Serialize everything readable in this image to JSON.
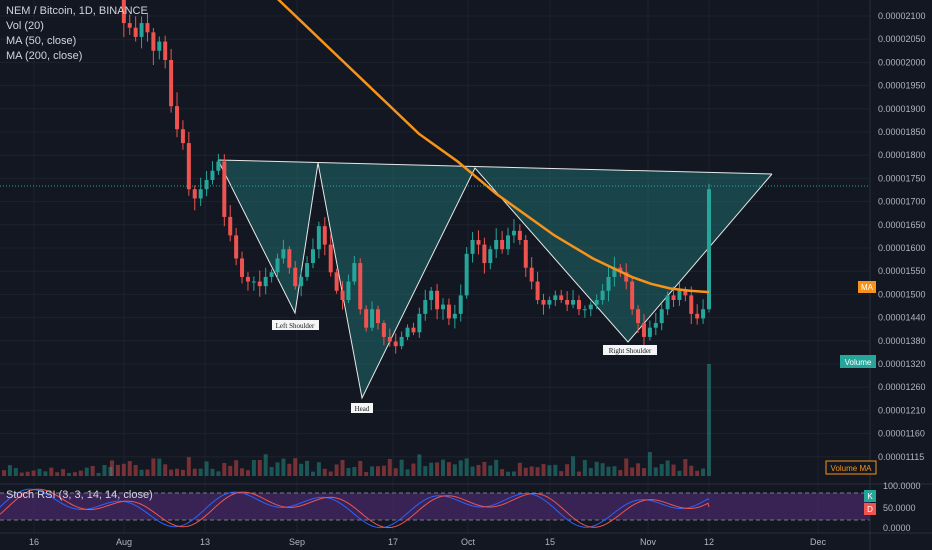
{
  "legend": {
    "title": "NEM / Bitcoin, 1D, BINANCE",
    "vol": "Vol (20)",
    "ma50": "MA (50, close)",
    "ma200": "MA (200, close)"
  },
  "stoch_legend": "Stoch RSI (3, 3, 14, 14, close)",
  "colors": {
    "background": "#131722",
    "up": "#26a69a",
    "down": "#ef5350",
    "ma": "#f7931a",
    "pattern_fill": "#1f6b6b",
    "pattern_line": "#e8e8e8",
    "stoch_band": "#4a2a6b",
    "stoch_k": "#2962ff",
    "stoch_d": "#ef5350",
    "axis_text": "#b2b5be",
    "badge_volume": "#26a69a",
    "badge_ma": "#f7931a",
    "last_price_line": "#26a69a"
  },
  "price_axis_labels": [
    "0.00002100",
    "0.00002050",
    "0.00002000",
    "0.00001950",
    "0.00001900",
    "0.00001850",
    "0.00001800",
    "0.00001750",
    "0.00001700",
    "0.00001650",
    "0.00001600",
    "0.00001550",
    "0.00001500",
    "0.00001440",
    "0.00001380",
    "0.00001320",
    "0.00001260",
    "0.00001210",
    "0.00001160",
    "0.00001115"
  ],
  "stoch_axis_labels": [
    "100.0000",
    "50.0000",
    "0.0000"
  ],
  "time_axis_labels": [
    "16",
    "Aug",
    "13",
    "Sep",
    "17",
    "Oct",
    "15",
    "Nov",
    "12",
    "Dec"
  ],
  "badges": {
    "ma": "MA",
    "volume": "Volume",
    "volume_ma": "Volume MA",
    "k": "K",
    "d": "D"
  },
  "annotations": {
    "left_shoulder": "Left Shoulder",
    "head": "Head",
    "right_shoulder": "Right Shoulder"
  },
  "chart_data": {
    "type": "candlestick",
    "title": "NEM / Bitcoin, 1D, BINANCE",
    "pattern": "inverse head and shoulders",
    "ylim": [
      1.09e-05,
      2.13e-05
    ],
    "last_price": 1.72e-05,
    "ma50_last": 1.497e-05,
    "candles_close": [
      2.2e-05,
      2.15e-05,
      2.08e-05,
      2.07e-05,
      2.05e-05,
      2.08e-05,
      2.06e-05,
      2.02e-05,
      2.04e-05,
      2e-05,
      1.9e-05,
      1.85e-05,
      1.82e-05,
      1.72e-05,
      1.7e-05,
      1.72e-05,
      1.74e-05,
      1.76e-05,
      1.78e-05,
      1.66e-05,
      1.62e-05,
      1.57e-05,
      1.53e-05,
      1.52e-05,
      1.52e-05,
      1.51e-05,
      1.53e-05,
      1.54e-05,
      1.57e-05,
      1.59e-05,
      1.55e-05,
      1.51e-05,
      1.53e-05,
      1.56e-05,
      1.59e-05,
      1.64e-05,
      1.6e-05,
      1.54e-05,
      1.5e-05,
      1.48e-05,
      1.52e-05,
      1.56e-05,
      1.46e-05,
      1.42e-05,
      1.46e-05,
      1.43e-05,
      1.4e-05,
      1.39e-05,
      1.38e-05,
      1.4e-05,
      1.42e-05,
      1.41e-05,
      1.45e-05,
      1.48e-05,
      1.5e-05,
      1.46e-05,
      1.47e-05,
      1.44e-05,
      1.45e-05,
      1.49e-05,
      1.58e-05,
      1.61e-05,
      1.6e-05,
      1.56e-05,
      1.59e-05,
      1.61e-05,
      1.59e-05,
      1.62e-05,
      1.63e-05,
      1.61e-05,
      1.55e-05,
      1.52e-05,
      1.48e-05,
      1.47e-05,
      1.48e-05,
      1.49e-05,
      1.48e-05,
      1.47e-05,
      1.48e-05,
      1.46e-05,
      1.46e-05,
      1.47e-05,
      1.48e-05,
      1.5e-05,
      1.53e-05,
      1.55e-05,
      1.54e-05,
      1.52e-05,
      1.46e-05,
      1.43e-05,
      1.4e-05,
      1.42e-05,
      1.43e-05,
      1.46e-05,
      1.49e-05,
      1.48e-05,
      1.5e-05,
      1.49e-05,
      1.45e-05,
      1.44e-05,
      1.46e-05,
      1.72e-05
    ],
    "ma50": [
      2.2e-05,
      2.16e-05,
      2.12e-05,
      2.08e-05,
      2.04e-05,
      2e-05,
      1.96e-05,
      1.92e-05,
      1.88e-05,
      1.84e-05,
      1.81e-05,
      1.78e-05,
      1.745e-05,
      1.71e-05,
      1.68e-05,
      1.65e-05,
      1.62e-05,
      1.595e-05,
      1.57e-05,
      1.55e-05,
      1.53e-05,
      1.515e-05,
      1.505e-05,
      1.5e-05,
      1.497e-05
    ],
    "volume_spike_last": true,
    "stoch": {
      "k_last": 65,
      "d_last": 50,
      "ylim": [
        0,
        100
      ],
      "bands": [
        20,
        80
      ]
    }
  }
}
